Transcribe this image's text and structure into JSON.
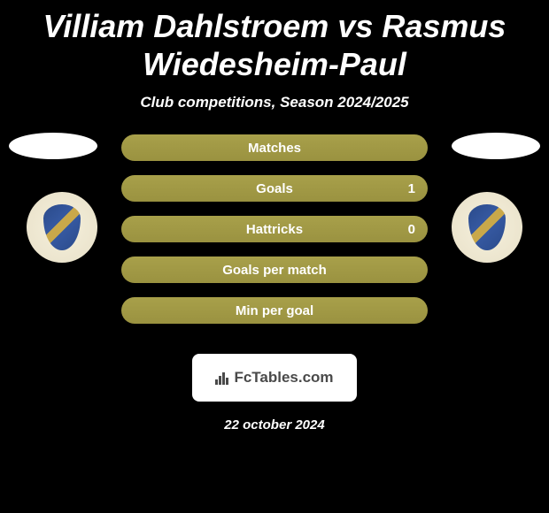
{
  "title": "Villiam Dahlstroem vs Rasmus Wiedesheim-Paul",
  "subtitle": "Club competitions, Season 2024/2025",
  "stats": [
    {
      "label": "Matches",
      "right_value": ""
    },
    {
      "label": "Goals",
      "right_value": "1"
    },
    {
      "label": "Hattricks",
      "right_value": "0"
    },
    {
      "label": "Goals per match",
      "right_value": ""
    },
    {
      "label": "Min per goal",
      "right_value": ""
    }
  ],
  "footer_brand": "FcTables.com",
  "date": "22 october 2024",
  "colors": {
    "background": "#000000",
    "bar_gradient_top": "#a8a04a",
    "bar_gradient_bottom": "#9a9240",
    "text": "#ffffff",
    "footer_bg": "#ffffff",
    "footer_text": "#4a4a4a"
  }
}
